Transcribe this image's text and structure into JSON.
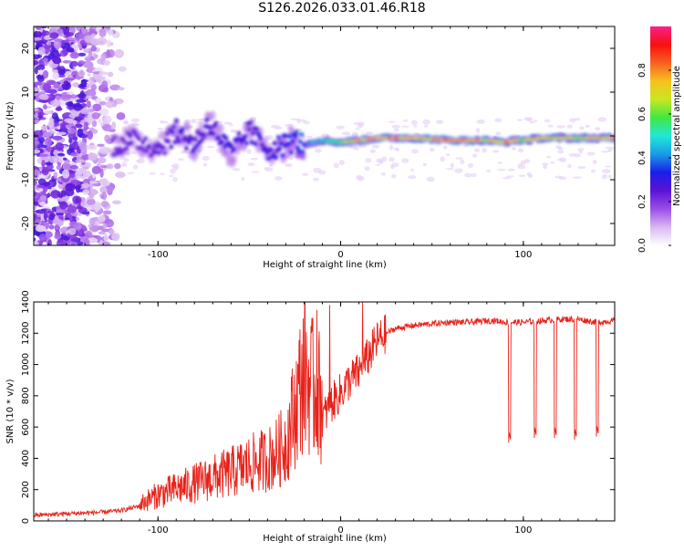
{
  "figure_title": "S126.2026.033.01.46.R18",
  "chart_data": [
    {
      "type": "heatmap",
      "title": "S126.2026.033.01.46.R18",
      "xlabel": "Height of straight line (km)",
      "ylabel": "Frequency (Hz)",
      "xlim": [
        -168,
        150
      ],
      "ylim": [
        -25,
        25
      ],
      "xticks": [
        -100,
        0,
        100
      ],
      "yticks": [
        -20,
        -10,
        0,
        10,
        20
      ],
      "colorbar": {
        "label": "Normalized spectral amplitude",
        "range": [
          0.0,
          1.0
        ],
        "ticks": [
          0.0,
          0.2,
          0.4,
          0.6,
          0.8
        ],
        "tick_labels": [
          "0.0",
          "0.2",
          "0.4",
          "0.6",
          "0.8"
        ],
        "colormap": [
          "#ffffff",
          "#d8b8f0",
          "#9b4de8",
          "#5a14d6",
          "#1a1ee8",
          "#1a9be8",
          "#20e8d8",
          "#40e840",
          "#c8e820",
          "#f8c020",
          "#f86020",
          "#f81010",
          "#f8208c"
        ]
      },
      "signal_track": {
        "x": [
          -125,
          -110,
          -100,
          -90,
          -80,
          -72,
          -60,
          -50,
          -40,
          -30,
          -25,
          -20,
          -10,
          0,
          10,
          20,
          40,
          60,
          70,
          80,
          90,
          95,
          100,
          110,
          120,
          130,
          140,
          150
        ],
        "y": [
          -2,
          -1,
          -3,
          1,
          -2,
          3,
          -4,
          1,
          -3,
          -2,
          -1,
          -2,
          -1,
          -1.5,
          -1,
          -0.5,
          -0.5,
          -1,
          -1,
          -1,
          -1.5,
          -1,
          -1,
          -0.5,
          -0.5,
          -0.5,
          -0.5,
          -0.5
        ],
        "amplitude": [
          0.25,
          0.25,
          0.25,
          0.3,
          0.3,
          0.3,
          0.3,
          0.3,
          0.3,
          0.35,
          0.35,
          0.4,
          0.5,
          0.6,
          0.8,
          0.85,
          0.8,
          0.85,
          0.85,
          0.75,
          0.85,
          0.75,
          0.7,
          0.8,
          0.75,
          0.7,
          0.75,
          0.8
        ]
      }
    },
    {
      "type": "line",
      "title": "",
      "xlabel": "Height of straight line (km)",
      "ylabel": "SNR (10 * v/v)",
      "xlim": [
        -168,
        150
      ],
      "ylim": [
        0,
        1400
      ],
      "xticks": [
        -100,
        0,
        100
      ],
      "yticks": [
        0,
        200,
        400,
        600,
        800,
        1000,
        1200,
        1400
      ],
      "series": [
        {
          "name": "SNR",
          "color": "#e8221a",
          "x": [
            -168,
            -150,
            -130,
            -120,
            -110,
            -100,
            -90,
            -80,
            -70,
            -60,
            -50,
            -40,
            -35,
            -30,
            -25,
            -20,
            -15,
            -10,
            -5,
            0,
            5,
            10,
            15,
            20,
            25,
            30,
            40,
            50,
            60,
            70,
            80,
            85,
            90,
            100,
            110,
            120,
            130,
            140,
            150
          ],
          "values": [
            30,
            40,
            50,
            60,
            90,
            140,
            170,
            200,
            230,
            260,
            300,
            330,
            360,
            420,
            600,
            800,
            700,
            650,
            750,
            820,
            900,
            950,
            1050,
            1150,
            1200,
            1230,
            1250,
            1260,
            1270,
            1270,
            1280,
            1280,
            1270,
            1270,
            1280,
            1290,
            1290,
            1270,
            1280
          ]
        }
      ],
      "dropouts": [
        {
          "x": 92,
          "value": 580
        },
        {
          "x": 106,
          "value": 610
        },
        {
          "x": 117,
          "value": 610
        },
        {
          "x": 128,
          "value": 600
        },
        {
          "x": 140,
          "value": 620
        }
      ],
      "spikes": [
        {
          "x": -13,
          "value": 1350
        },
        {
          "x": -6,
          "value": 1380
        },
        {
          "x": 12,
          "value": 1400
        }
      ]
    }
  ]
}
